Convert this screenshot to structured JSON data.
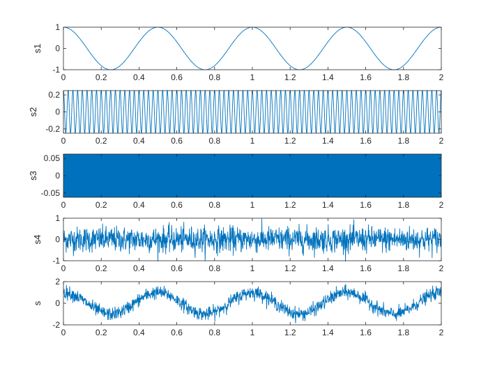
{
  "figure": {
    "background": "#ffffff",
    "line_color": "#0072bd",
    "axis_color": "#262626"
  },
  "chart_data": [
    {
      "type": "line",
      "ylabel": "s1",
      "xlim": [
        0,
        2
      ],
      "ylim": [
        -1,
        1
      ],
      "xticks": [
        0,
        0.2,
        0.4,
        0.6,
        0.8,
        1,
        1.2,
        1.4,
        1.6,
        1.8,
        2
      ],
      "xtick_labels": [
        "0",
        "0.2",
        "0.4",
        "0.6",
        "0.8",
        "1",
        "1.2",
        "1.4",
        "1.6",
        "1.8",
        "2"
      ],
      "yticks": [
        -1,
        0,
        1
      ],
      "ytick_labels": [
        "-1",
        "0",
        "1"
      ],
      "signal": {
        "kind": "cosine",
        "amplitude": 1,
        "frequency_hz": 2,
        "noise_amplitude": 0
      }
    },
    {
      "type": "line",
      "ylabel": "s2",
      "xlim": [
        0,
        2
      ],
      "ylim": [
        -0.25,
        0.25
      ],
      "xticks": [
        0,
        0.2,
        0.4,
        0.6,
        0.8,
        1,
        1.2,
        1.4,
        1.6,
        1.8,
        2
      ],
      "xtick_labels": [
        "0",
        "0.2",
        "0.4",
        "0.6",
        "0.8",
        "1",
        "1.2",
        "1.4",
        "1.6",
        "1.8",
        "2"
      ],
      "yticks": [
        -0.2,
        0,
        0.2
      ],
      "ytick_labels": [
        "-0.2",
        "0",
        "0.2"
      ],
      "signal": {
        "kind": "cosine",
        "amplitude": 0.25,
        "frequency_hz": 40,
        "noise_amplitude": 0
      }
    },
    {
      "type": "line",
      "ylabel": "s3",
      "xlim": [
        0,
        2
      ],
      "ylim": [
        -0.0625,
        0.0625
      ],
      "xticks": [
        0,
        0.2,
        0.4,
        0.6,
        0.8,
        1,
        1.2,
        1.4,
        1.6,
        1.8,
        2
      ],
      "xtick_labels": [
        "0",
        "0.2",
        "0.4",
        "0.6",
        "0.8",
        "1",
        "1.2",
        "1.4",
        "1.6",
        "1.8",
        "2"
      ],
      "yticks": [
        -0.05,
        0,
        0.05
      ],
      "ytick_labels": [
        "-0.05",
        "0",
        "0.05"
      ],
      "signal": {
        "kind": "cosine",
        "amplitude": 0.0625,
        "frequency_hz": 400,
        "noise_amplitude": 0
      }
    },
    {
      "type": "line",
      "ylabel": "s4",
      "xlim": [
        0,
        2
      ],
      "ylim": [
        -1,
        1
      ],
      "xticks": [
        0,
        0.2,
        0.4,
        0.6,
        0.8,
        1,
        1.2,
        1.4,
        1.6,
        1.8,
        2
      ],
      "xtick_labels": [
        "0",
        "0.2",
        "0.4",
        "0.6",
        "0.8",
        "1",
        "1.2",
        "1.4",
        "1.6",
        "1.8",
        "2"
      ],
      "yticks": [
        -1,
        0,
        1
      ],
      "ytick_labels": [
        "-1",
        "0",
        "1"
      ],
      "signal": {
        "kind": "noise",
        "amplitude": 0,
        "frequency_hz": 0,
        "noise_amplitude": 0.3
      }
    },
    {
      "type": "line",
      "ylabel": "s",
      "xlim": [
        0,
        2
      ],
      "ylim": [
        -2,
        2
      ],
      "xticks": [
        0,
        0.2,
        0.4,
        0.6,
        0.8,
        1,
        1.2,
        1.4,
        1.6,
        1.8,
        2
      ],
      "xtick_labels": [
        "0",
        "0.2",
        "0.4",
        "0.6",
        "0.8",
        "1",
        "1.2",
        "1.4",
        "1.6",
        "1.8",
        "2"
      ],
      "yticks": [
        -2,
        0,
        2
      ],
      "ytick_labels": [
        "-2",
        "0",
        "2"
      ],
      "signal": {
        "kind": "cosine+noise",
        "amplitude": 1,
        "frequency_hz": 2,
        "noise_amplitude": 0.3
      }
    }
  ]
}
